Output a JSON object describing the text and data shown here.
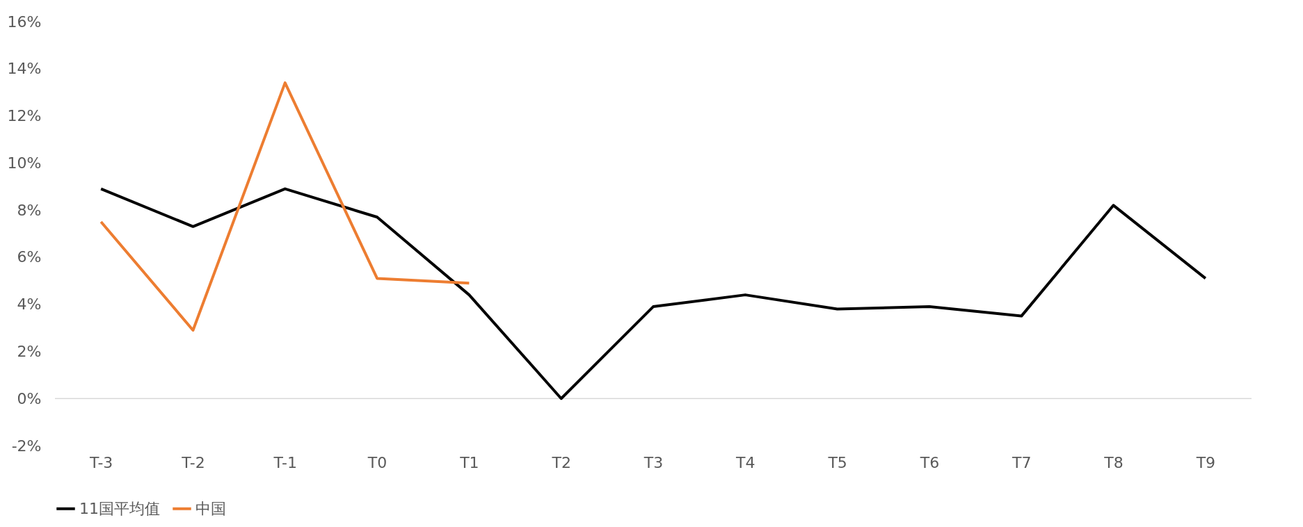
{
  "chart_data": {
    "type": "line",
    "categories": [
      "T-3",
      "T-2",
      "T-1",
      "T0",
      "T1",
      "T2",
      "T3",
      "T4",
      "T5",
      "T6",
      "T7",
      "T8",
      "T9"
    ],
    "series": [
      {
        "name": "11国平均值",
        "color": "#000000",
        "values": [
          8.9,
          7.3,
          8.9,
          7.7,
          4.4,
          0,
          3.9,
          4.4,
          3.8,
          3.9,
          3.5,
          8.2,
          5.1
        ]
      },
      {
        "name": "中国",
        "color": "#ed7d31",
        "values": [
          7.5,
          2.9,
          13.4,
          5.1,
          4.9,
          null,
          null,
          null,
          null,
          null,
          null,
          null,
          null
        ]
      }
    ],
    "ylim": [
      -2,
      16
    ],
    "yticks": [
      {
        "value": -2,
        "label": "-2%"
      },
      {
        "value": 0,
        "label": "0%"
      },
      {
        "value": 2,
        "label": "2%"
      },
      {
        "value": 4,
        "label": "4%"
      },
      {
        "value": 6,
        "label": "6%"
      },
      {
        "value": 8,
        "label": "8%"
      },
      {
        "value": 10,
        "label": "10%"
      },
      {
        "value": 12,
        "label": "12%"
      },
      {
        "value": 14,
        "label": "14%"
      },
      {
        "value": 16,
        "label": "16%"
      }
    ],
    "ref_lines": [
      {
        "axis": "y",
        "value": 0,
        "color": "#d9d9d9"
      }
    ],
    "grid": false,
    "legend": "bottom",
    "marker": "none",
    "line_style": "solid"
  }
}
